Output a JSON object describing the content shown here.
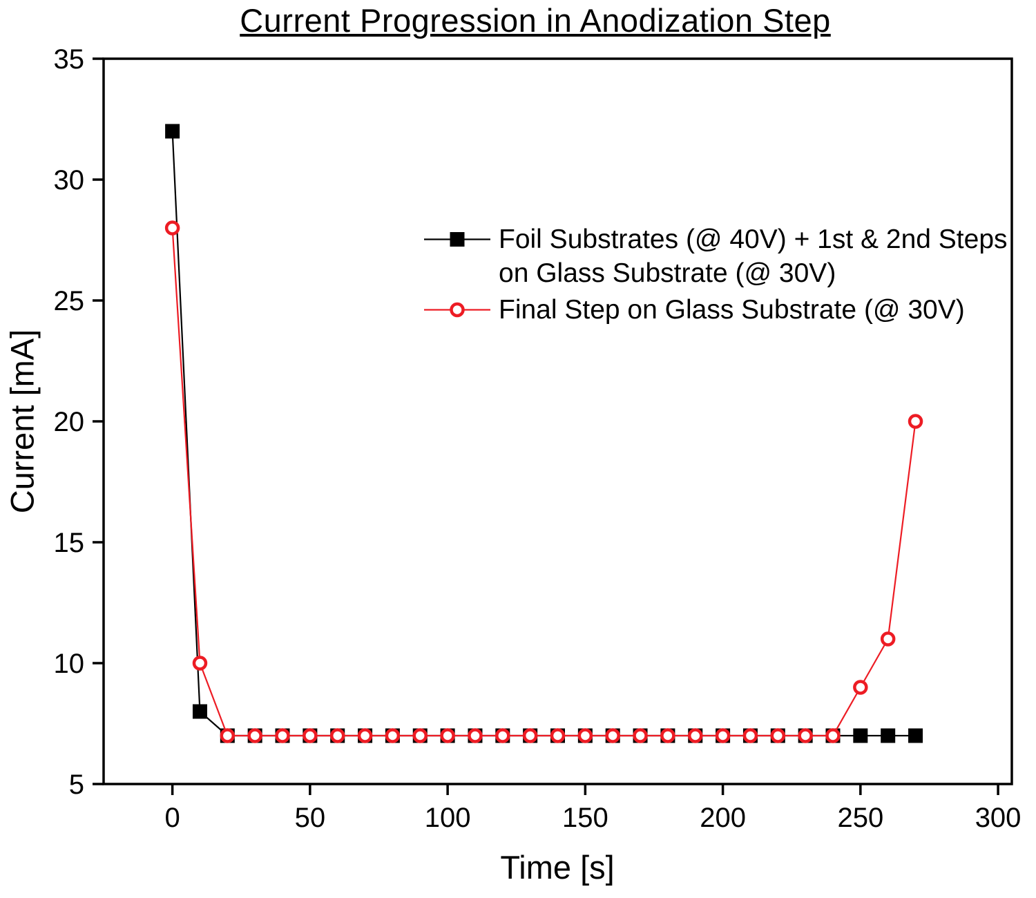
{
  "chart_data": {
    "type": "line",
    "title": "Current Progression in Anodization Step",
    "xlabel": "Time [s]",
    "ylabel": "Current [mA]",
    "xlim": [
      -25,
      305
    ],
    "ylim": [
      5,
      35
    ],
    "xticks": [
      0,
      50,
      100,
      150,
      200,
      250,
      300
    ],
    "yticks": [
      5,
      10,
      15,
      20,
      25,
      30,
      35
    ],
    "grid": false,
    "legend_position": "inside-upper-right",
    "background": "#ffffff",
    "axis_color": "#000000",
    "series": [
      {
        "name": "Foil Substrates (@ 40V) + 1st & 2nd Steps on Glass Substrate (@ 30V)",
        "color": "#000000",
        "marker": "filled-square",
        "x": [
          0,
          10,
          20,
          30,
          40,
          50,
          60,
          70,
          80,
          90,
          100,
          110,
          120,
          130,
          140,
          150,
          160,
          170,
          180,
          190,
          200,
          210,
          220,
          230,
          240,
          250,
          260,
          270
        ],
        "y": [
          32,
          8,
          7,
          7,
          7,
          7,
          7,
          7,
          7,
          7,
          7,
          7,
          7,
          7,
          7,
          7,
          7,
          7,
          7,
          7,
          7,
          7,
          7,
          7,
          7,
          7,
          7,
          7
        ]
      },
      {
        "name": "Final Step on Glass Substrate (@ 30V)",
        "color": "#ed1c24",
        "marker": "open-circle",
        "x": [
          0,
          10,
          20,
          30,
          40,
          50,
          60,
          70,
          80,
          90,
          100,
          110,
          120,
          130,
          140,
          150,
          160,
          170,
          180,
          190,
          200,
          210,
          220,
          230,
          240,
          250,
          260,
          270
        ],
        "y": [
          28,
          10,
          7,
          7,
          7,
          7,
          7,
          7,
          7,
          7,
          7,
          7,
          7,
          7,
          7,
          7,
          7,
          7,
          7,
          7,
          7,
          7,
          7,
          7,
          7,
          9,
          11,
          20
        ]
      }
    ]
  }
}
